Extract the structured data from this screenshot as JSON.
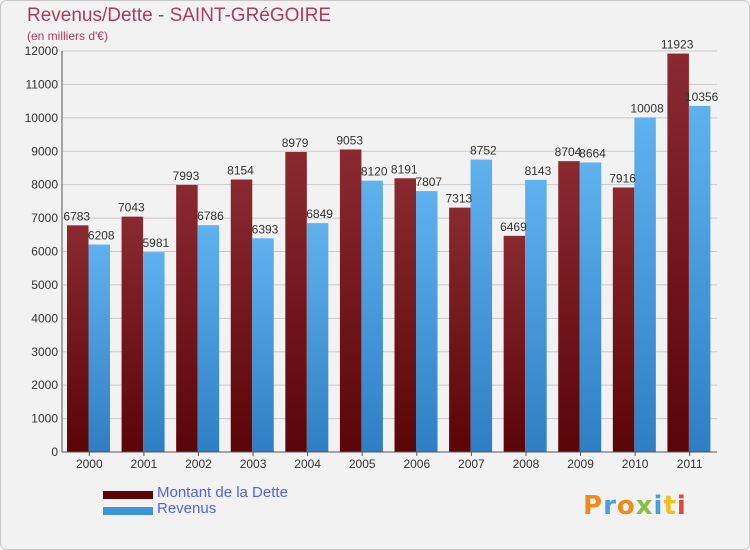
{
  "header": {
    "title": "Revenus/Dette - SAINT-GRéGOIRE",
    "subtitle": "(en milliers d'€)"
  },
  "colors": {
    "series_debt": "#7a1a1f",
    "series_revenue": "#4da3e6",
    "title": "#b03a5b",
    "legend_text": "#5560e6"
  },
  "legend": {
    "debt_label": "Montant de la Dette",
    "revenue_label": "Revenus"
  },
  "logo": {
    "text": "Proxiti"
  },
  "chart_data": {
    "type": "bar",
    "categories": [
      "2000",
      "2001",
      "2002",
      "2003",
      "2004",
      "2005",
      "2006",
      "2007",
      "2008",
      "2009",
      "2010",
      "2011"
    ],
    "series": [
      {
        "name": "Montant de la Dette",
        "values": [
          6783,
          7043,
          7993,
          8154,
          8979,
          9053,
          8191,
          7313,
          6469,
          8704,
          7916,
          11923
        ]
      },
      {
        "name": "Revenus",
        "values": [
          6208,
          5981,
          6786,
          6393,
          6849,
          8120,
          7807,
          8752,
          8143,
          8664,
          10008,
          10356
        ]
      }
    ],
    "ylim": [
      0,
      12000
    ],
    "yticks": [
      0,
      1000,
      2000,
      3000,
      4000,
      5000,
      6000,
      7000,
      8000,
      9000,
      10000,
      11000,
      12000
    ],
    "grid": true,
    "legend_position": "bottom-left"
  }
}
